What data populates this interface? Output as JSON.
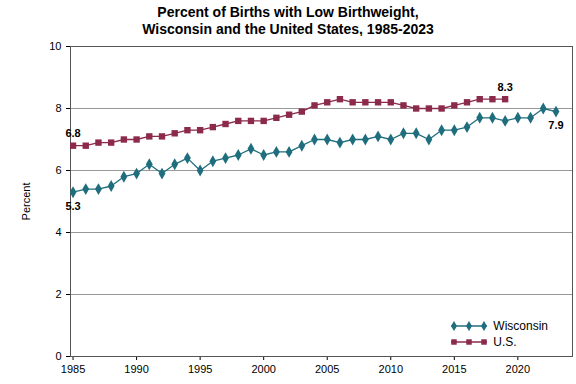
{
  "chart_data": {
    "type": "line",
    "title": "Percent of Births with Low Birthweight,\nWisconsin and the United States, 1985-2023",
    "y_label": "Percent",
    "x": [
      1985,
      1986,
      1987,
      1988,
      1989,
      1990,
      1991,
      1992,
      1993,
      1994,
      1995,
      1996,
      1997,
      1998,
      1999,
      2000,
      2001,
      2002,
      2003,
      2004,
      2005,
      2006,
      2007,
      2008,
      2009,
      2010,
      2011,
      2012,
      2013,
      2014,
      2015,
      2016,
      2017,
      2018,
      2019,
      2020,
      2021,
      2022,
      2023
    ],
    "series": [
      {
        "name": "Wisconsin",
        "color": "#1f6e7e",
        "marker": "diamond",
        "line_style": "solid",
        "values": [
          5.3,
          5.4,
          5.4,
          5.5,
          5.8,
          5.9,
          6.2,
          5.9,
          6.2,
          6.4,
          6.0,
          6.3,
          6.4,
          6.5,
          6.7,
          6.5,
          6.6,
          6.6,
          6.8,
          7.0,
          7.0,
          6.9,
          7.0,
          7.0,
          7.1,
          7.0,
          7.2,
          7.2,
          7.0,
          7.3,
          7.3,
          7.4,
          7.7,
          7.7,
          7.6,
          7.7,
          7.7,
          8.0,
          7.9
        ]
      },
      {
        "name": "U.S.",
        "color": "#8b2a4b",
        "marker": "square",
        "line_style": "solid",
        "values": [
          6.8,
          6.8,
          6.9,
          6.9,
          7.0,
          7.0,
          7.1,
          7.1,
          7.2,
          7.3,
          7.3,
          7.4,
          7.5,
          7.6,
          7.6,
          7.6,
          7.7,
          7.8,
          7.9,
          8.1,
          8.2,
          8.3,
          8.2,
          8.2,
          8.2,
          8.2,
          8.1,
          8.0,
          8.0,
          8.0,
          8.1,
          8.2,
          8.3,
          8.3,
          8.3,
          null,
          null,
          null,
          null
        ]
      }
    ],
    "annotations": [
      {
        "series": "U.S.",
        "x": 1985,
        "y": 6.8,
        "text": "6.8"
      },
      {
        "series": "Wisconsin",
        "x": 1985,
        "y": 5.3,
        "text": "5.3"
      },
      {
        "series": "U.S.",
        "x": 2019,
        "y": 8.3,
        "text": "8.3"
      },
      {
        "series": "Wisconsin",
        "x": 2023,
        "y": 7.9,
        "text": "7.9"
      }
    ],
    "xlim": [
      1984.8,
      2024.3
    ],
    "xticks": [
      1985,
      1990,
      1995,
      2000,
      2005,
      2010,
      2015,
      2020
    ],
    "ylim": [
      0,
      10
    ],
    "yticks": [
      0,
      2,
      4,
      6,
      8,
      10
    ],
    "grid": true,
    "legend": "bottom-right"
  }
}
